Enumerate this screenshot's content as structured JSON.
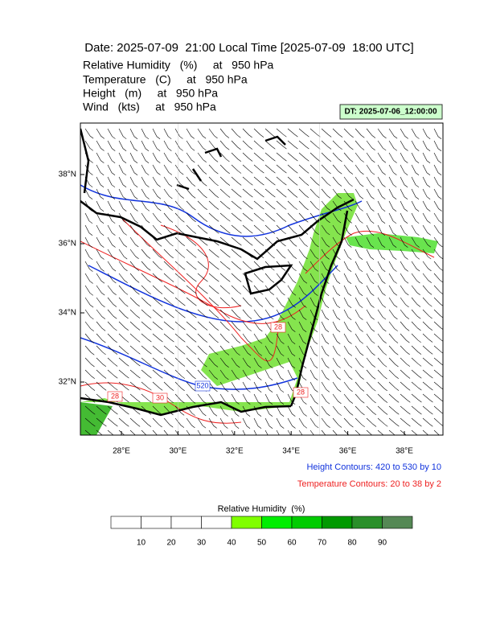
{
  "header": {
    "title": "Date: 2025-07-09  21:00 Local Time [2025-07-09  18:00 UTC]",
    "lines": [
      "Relative Humidity   (%)     at   950 hPa",
      "Temperature   (C)     at   950 hPa",
      "Height   (m)     at   950 hPa",
      "Wind   (kts)     at   950 hPa"
    ],
    "valid_time": "DT: 2025-07-06_12:00:00"
  },
  "map": {
    "lat_ticks": [
      {
        "value": 38,
        "label": "38°N"
      },
      {
        "value": 36,
        "label": "36°N"
      },
      {
        "value": 34,
        "label": "34°N"
      },
      {
        "value": 32,
        "label": "32°N"
      }
    ],
    "lon_ticks": [
      {
        "value": 28,
        "label": "28°E"
      },
      {
        "value": 30,
        "label": "30°E"
      },
      {
        "value": 32,
        "label": "32°E"
      },
      {
        "value": 34,
        "label": "34°E"
      },
      {
        "value": 36,
        "label": "36°E"
      },
      {
        "value": 38,
        "label": "38°E"
      }
    ],
    "contour_labels": [
      {
        "text": "28",
        "color": "#ee2222"
      },
      {
        "text": "520",
        "color": "#1133dd"
      },
      {
        "text": "28",
        "color": "#ee2222"
      },
      {
        "text": "30",
        "color": "#ee2222"
      },
      {
        "text": "28",
        "color": "#ee2222"
      }
    ]
  },
  "footer": {
    "height_note": "Height Contours: 420 to 530 by 10",
    "temperature_note": "Temperature Contours: 20 to 38 by 2"
  },
  "colorbar": {
    "title": "Relative Humidity  (%)",
    "ticks": [
      10,
      20,
      30,
      40,
      50,
      60,
      70,
      80,
      90
    ],
    "colors": [
      "#ffffff",
      "#ffffff",
      "#ffffff",
      "#ffffff",
      "#80ff00",
      "#00ee00",
      "#00cc00",
      "#009900",
      "#2a8f2a",
      "#558855"
    ]
  }
}
